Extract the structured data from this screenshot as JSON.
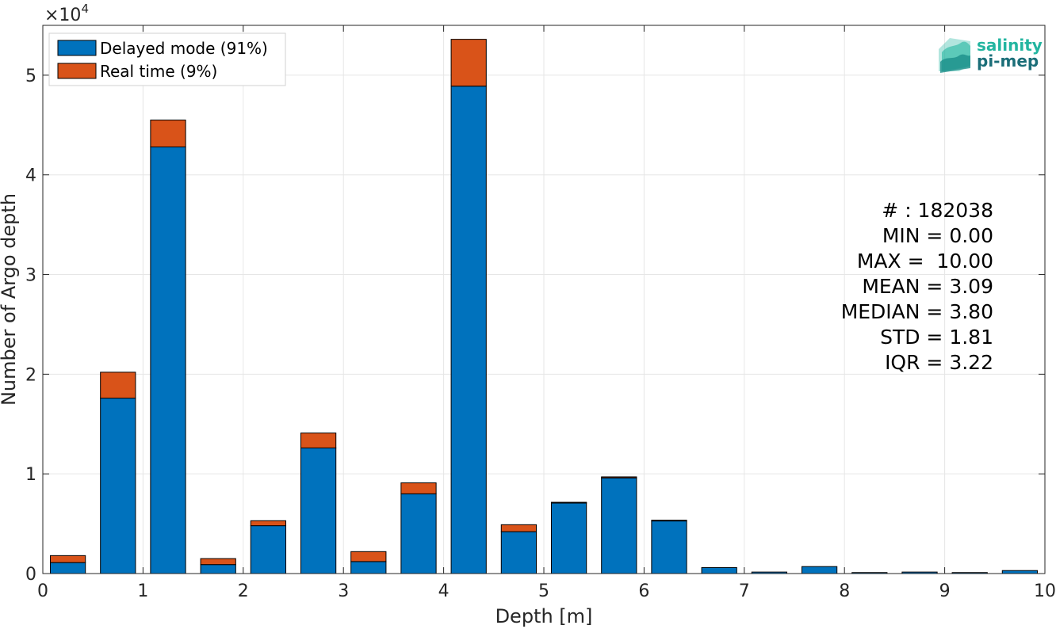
{
  "chart_data": {
    "type": "bar",
    "stacked": true,
    "xlabel": "Depth [m]",
    "ylabel": "Number of Argo depth",
    "xlim": [
      0,
      10
    ],
    "ylim": [
      0,
      5.5
    ],
    "y_multiplier_label": "×10",
    "y_multiplier_exponent": "4",
    "xticks": [
      "0",
      "1",
      "2",
      "3",
      "4",
      "5",
      "6",
      "7",
      "8",
      "9",
      "10"
    ],
    "yticks": [
      "0",
      "1",
      "2",
      "3",
      "4",
      "5"
    ],
    "grid": true,
    "legend_position": "top-left",
    "bin_centers": [
      0.25,
      0.75,
      1.25,
      1.75,
      2.25,
      2.75,
      3.25,
      3.75,
      4.25,
      4.75,
      5.25,
      5.75,
      6.25,
      6.75,
      7.25,
      7.75,
      8.25,
      8.75,
      9.25,
      9.75
    ],
    "bar_width": 0.35,
    "series": [
      {
        "name": "Delayed mode (91%)",
        "color": "#0072bd",
        "values": [
          0.11,
          1.76,
          4.28,
          0.09,
          0.48,
          1.26,
          0.12,
          0.8,
          4.89,
          0.42,
          0.71,
          0.96,
          0.53,
          0.06,
          0.015,
          0.07,
          0.01,
          0.015,
          0.01,
          0.03
        ]
      },
      {
        "name": "Real time (9%)",
        "color": "#d95319",
        "values": [
          0.07,
          0.26,
          0.27,
          0.06,
          0.05,
          0.15,
          0.1,
          0.11,
          0.47,
          0.07,
          0.005,
          0.01,
          0.005,
          0.0,
          0.0,
          0.0,
          0.0,
          0.0,
          0.0,
          0.0
        ]
      }
    ]
  },
  "stats": {
    "count": "# : 182038",
    "min": "MIN = 0.00",
    "max": "MAX =  10.00",
    "mean": "MEAN = 3.09",
    "median": "MEDIAN = 3.80",
    "std": "STD = 1.81",
    "iqr": "IQR = 3.22"
  },
  "logo": {
    "line1": "salinity",
    "line2": "pi-mep",
    "color1": "#23b5a0",
    "color2": "#1b6e78"
  }
}
